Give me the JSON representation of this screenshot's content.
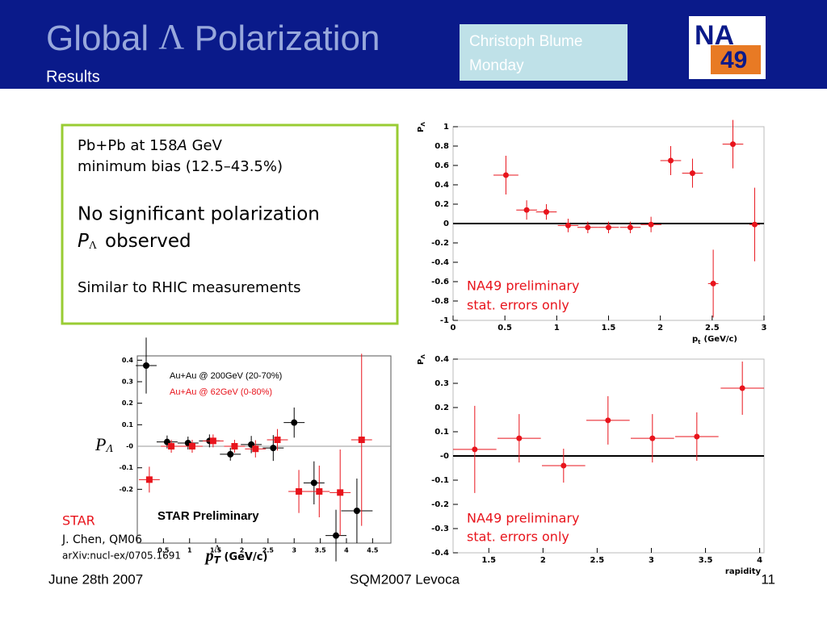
{
  "header": {
    "title_a": "Global",
    "title_lambda": "Λ",
    "title_b": "Polarization",
    "subtitle": "Results",
    "author": "Christoph Blume",
    "day": "Monday",
    "logo_top": "NA",
    "logo_bottom": "49"
  },
  "summary": {
    "line1_a": "Pb+Pb at 158",
    "line1_italic": "A",
    "line1_b": "GeV",
    "line2": "minimum bias (12.5–43.5%)",
    "line3": "No significant polarization",
    "line4_p": "P",
    "line4_sub": "Λ",
    "line4_b": "observed",
    "line5": "Similar to RHIC measurements"
  },
  "star_ref": {
    "name": "STAR",
    "author": "J. Chen, QM06",
    "arxiv": "arXiv:nucl-ex/0705.1691"
  },
  "footer": {
    "date": "June 28th 2007",
    "conference": "SQM2007 Levoca",
    "page": "11"
  },
  "chart_data": [
    {
      "type": "scatter",
      "y_label": "P",
      "y_label_sub": "Λ",
      "x_label": "p",
      "x_label_sub": "t",
      "x_label_b": "(GeV/c)",
      "annotations": [
        "NA49 preliminary",
        "stat. errors only"
      ],
      "zero_line": true,
      "xlim": [
        0,
        3
      ],
      "xticks": [
        0,
        0.5,
        1,
        1.5,
        2,
        2.5,
        3
      ],
      "ylim": [
        -1,
        1
      ],
      "yticks": [
        -1,
        -0.8,
        -0.6,
        -0.4,
        -0.2,
        0,
        0.2,
        0.4,
        0.6,
        0.8,
        1
      ],
      "series": [
        {
          "color": "#e8141c",
          "x": [
            0.51,
            0.71,
            0.9,
            1.11,
            1.3,
            1.5,
            1.71,
            1.91,
            2.1,
            2.31,
            2.51,
            2.7,
            2.91
          ],
          "values": [
            0.5,
            0.14,
            0.12,
            -0.02,
            -0.04,
            -0.04,
            -0.04,
            -0.01,
            0.65,
            0.52,
            -0.62,
            0.82,
            -0.01
          ],
          "xerr": [
            0.12,
            0.1,
            0.1,
            0.1,
            0.1,
            0.1,
            0.1,
            0.1,
            0.1,
            0.1,
            0.05,
            0.1,
            0.05
          ],
          "yerr": [
            0.2,
            0.1,
            0.08,
            0.07,
            0.06,
            0.06,
            0.06,
            0.08,
            0.15,
            0.15,
            0.35,
            0.25,
            0.38
          ]
        }
      ]
    },
    {
      "type": "scatter",
      "y_label": "P",
      "y_label_sub": "Λ",
      "x_label": "rapidity",
      "annotations": [
        "NA49 preliminary",
        "stat. errors only"
      ],
      "zero_line": true,
      "xlim": [
        1.17,
        4.04
      ],
      "xticks": [
        1.5,
        2,
        2.5,
        3,
        3.5,
        4
      ],
      "ylim": [
        -0.4,
        0.4
      ],
      "yticks": [
        -0.4,
        -0.3,
        -0.2,
        -0.1,
        {
          "value": 0,
          "label": "-0"
        },
        0.1,
        0.2,
        0.3,
        0.4
      ],
      "series": [
        {
          "color": "#e8141c",
          "x": [
            1.37,
            1.78,
            2.19,
            2.6,
            3.01,
            3.42,
            3.84
          ],
          "values": [
            0.027,
            0.073,
            -0.04,
            0.147,
            0.073,
            0.08,
            0.28
          ],
          "xerr": [
            0.2,
            0.2,
            0.2,
            0.2,
            0.2,
            0.2,
            0.2
          ],
          "yerr": [
            0.18,
            0.1,
            0.07,
            0.1,
            0.1,
            0.1,
            0.11
          ]
        }
      ]
    },
    {
      "type": "scatter",
      "y_label": "P",
      "y_label_sub": "Λ",
      "x_label": "p",
      "x_label_sub": "T",
      "x_label_sup": "Λ",
      "x_label_b": "(GeV/c)",
      "annotations": [
        "STAR Preliminary"
      ],
      "zero_line": false,
      "xlim": [
        0,
        4.85
      ],
      "xticks": [
        0.5,
        1,
        1.5,
        2,
        2.5,
        3,
        3.5,
        4,
        4.5
      ],
      "ylim": [
        -0.45,
        0.42
      ],
      "yticks": [
        -0.2,
        -0.1,
        {
          "value": 0,
          "label": "-0"
        },
        0.1,
        0.2,
        0.3,
        0.4
      ],
      "series": [
        {
          "name": "Au+Au @ 200GeV (20-70%)",
          "color": "#000000",
          "marker": "circle",
          "x": [
            0.17,
            0.57,
            0.97,
            1.38,
            1.78,
            2.18,
            2.6,
            3.0,
            3.38,
            3.8,
            4.2
          ],
          "values": [
            0.375,
            0.02,
            0.015,
            0.025,
            -0.037,
            0.008,
            -0.008,
            0.11,
            -0.17,
            -0.415,
            -0.3
          ],
          "xerr": [
            0.2,
            0.2,
            0.2,
            0.2,
            0.2,
            0.2,
            0.2,
            0.2,
            0.2,
            0.2,
            0.3
          ],
          "yerr": [
            0.13,
            0.03,
            0.03,
            0.03,
            0.03,
            0.04,
            0.06,
            0.07,
            0.1,
            0.12,
            0.15
          ]
        },
        {
          "name": "Au+Au @ 62GeV (0-80%)",
          "color": "#e8141c",
          "marker": "square",
          "x": [
            0.23,
            0.65,
            1.05,
            1.45,
            1.86,
            2.26,
            2.68,
            3.09,
            3.48,
            3.88,
            4.29
          ],
          "values": [
            -0.155,
            0.0,
            0.0,
            0.025,
            0.0,
            -0.012,
            0.03,
            -0.21,
            -0.21,
            -0.215,
            0.03
          ],
          "xerr": [
            0.2,
            0.2,
            0.2,
            0.2,
            0.2,
            0.2,
            0.2,
            0.2,
            0.2,
            0.2,
            0.2
          ],
          "yerr": [
            0.06,
            0.03,
            0.03,
            0.03,
            0.03,
            0.04,
            0.05,
            0.1,
            0.12,
            0.2,
            0.4
          ]
        }
      ]
    }
  ]
}
